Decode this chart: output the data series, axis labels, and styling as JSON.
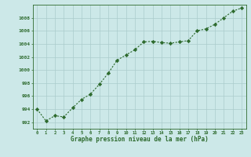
{
  "x": [
    0,
    1,
    2,
    3,
    4,
    5,
    6,
    7,
    8,
    9,
    10,
    11,
    12,
    13,
    14,
    15,
    16,
    17,
    18,
    19,
    20,
    21,
    22,
    23
  ],
  "y": [
    994.0,
    992.2,
    993.0,
    992.8,
    994.2,
    995.5,
    996.3,
    997.8,
    999.5,
    1001.5,
    1002.3,
    1003.1,
    1004.3,
    1004.4,
    1004.2,
    1004.1,
    1004.3,
    1004.5,
    1006.0,
    1006.3,
    1007.0,
    1008.0,
    1009.0,
    1009.5
  ],
  "line_color": "#2d6a2d",
  "marker": "D",
  "marker_size": 2.2,
  "bg_color": "#cce8e8",
  "grid_color": "#aacccc",
  "xlabel": "Graphe pression niveau de la mer (hPa)",
  "xlabel_color": "#2d6a2d",
  "tick_color": "#2d6a2d",
  "ylim_min": 991,
  "ylim_max": 1010,
  "yticks": [
    992,
    994,
    996,
    998,
    1000,
    1002,
    1004,
    1006,
    1008
  ],
  "xticks": [
    0,
    1,
    2,
    3,
    4,
    5,
    6,
    7,
    8,
    9,
    10,
    11,
    12,
    13,
    14,
    15,
    16,
    17,
    18,
    19,
    20,
    21,
    22,
    23
  ]
}
